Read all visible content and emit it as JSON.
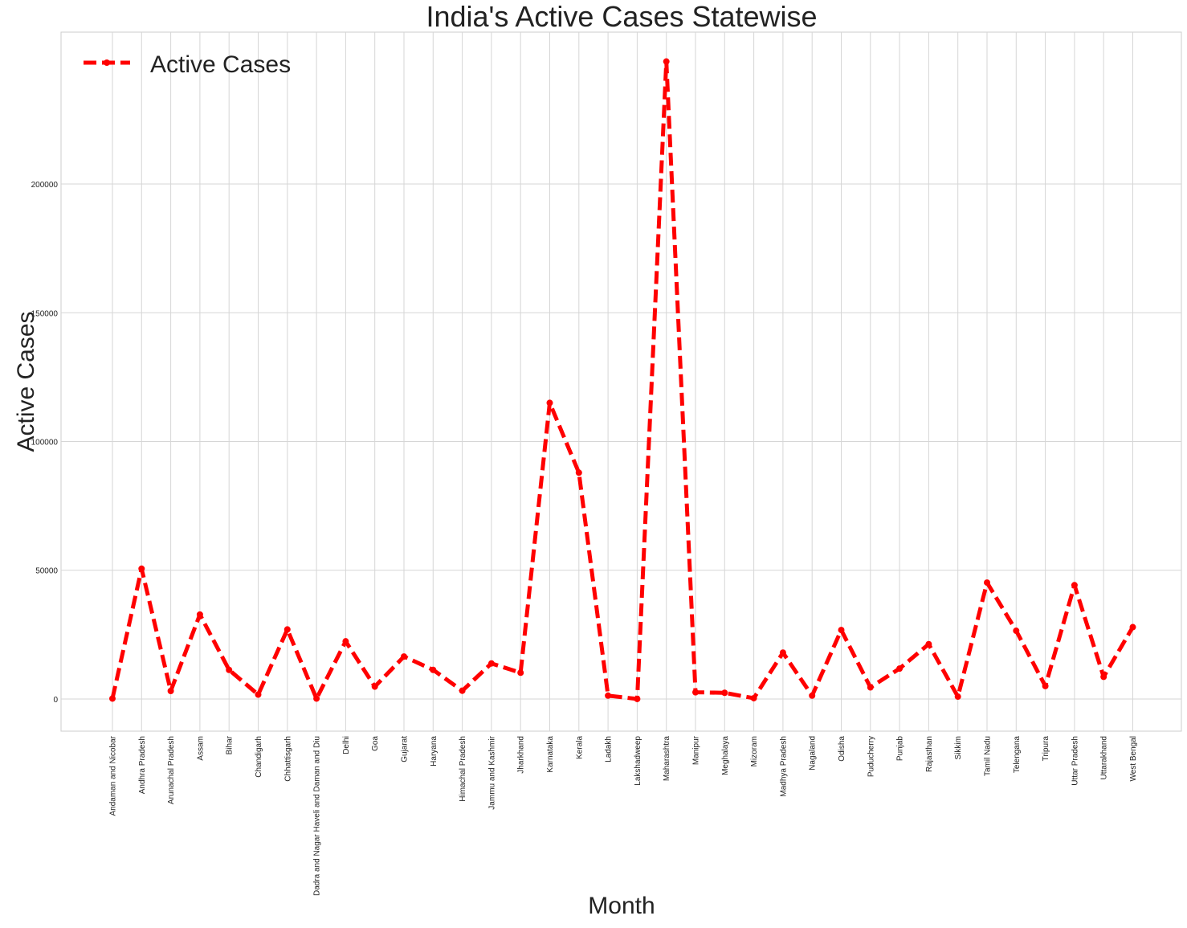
{
  "chart_data": {
    "type": "line",
    "title": "India's Active Cases Statewise",
    "xlabel": "Month",
    "ylabel": "Active Cases",
    "categories": [
      "Andaman and Nicobar",
      "Andhra Pradesh",
      "Arunachal Pradesh",
      "Assam",
      "Bihar",
      "Chandigarh",
      "Chhattisgarh",
      "Dadra and Nagar Haveli and Daman and Diu",
      "Delhi",
      "Goa",
      "Gujarat",
      "Haryana",
      "Himachal Pradesh",
      "Jammu and Kashmir",
      "Jharkhand",
      "Karnataka",
      "Kerala",
      "Ladakh",
      "Lakshadweep",
      "Maharashtra",
      "Manipur",
      "Meghalaya",
      "Mizoram",
      "Madhya Pradesh",
      "Nagaland",
      "Odisha",
      "Puducherry",
      "Punjab",
      "Rajasthan",
      "Sikkim",
      "Tamil Nadu",
      "Telengana",
      "Tripura",
      "Uttar Pradesh",
      "Uttarakhand",
      "West Bengal"
    ],
    "series": [
      {
        "name": "Active Cases",
        "color": "#ff0000",
        "line_style": "dashed",
        "marker": "circle",
        "values": [
          150,
          50600,
          3100,
          32800,
          11300,
          1700,
          27000,
          150,
          22400,
          4800,
          16500,
          11300,
          3200,
          13800,
          10200,
          115000,
          87900,
          1300,
          0,
          247600,
          2600,
          2400,
          300,
          18000,
          1300,
          26800,
          4500,
          11800,
          21300,
          900,
          45200,
          26500,
          5000,
          44200,
          8600,
          27900
        ]
      }
    ],
    "y_ticks": [
      0,
      50000,
      100000,
      150000,
      200000
    ],
    "ylim": [
      -12500,
      259000
    ],
    "grid": true,
    "legend": {
      "position": "top-left",
      "entries": [
        "Active Cases"
      ]
    }
  }
}
